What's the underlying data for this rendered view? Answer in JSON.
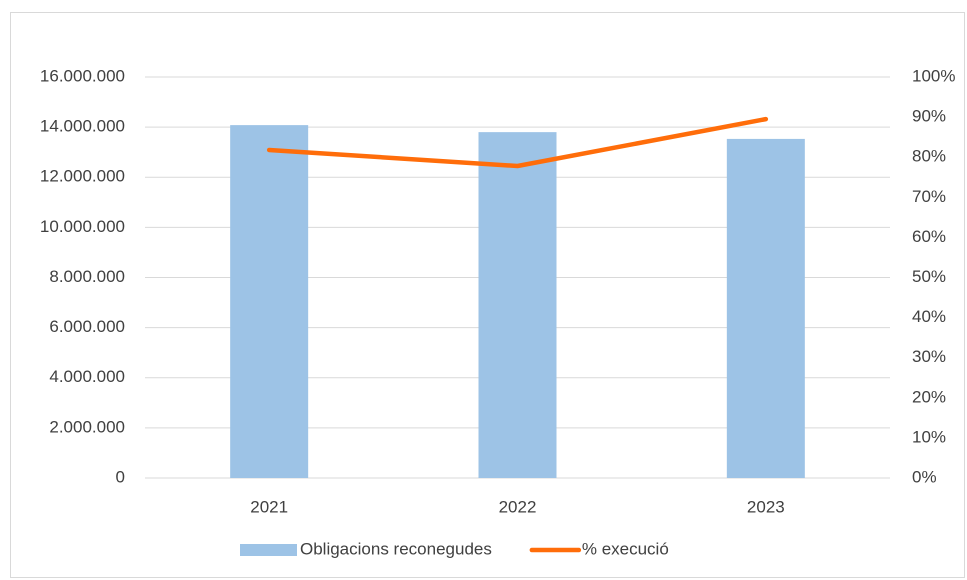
{
  "chart_data": {
    "type": "bar",
    "categories": [
      "2021",
      "2022",
      "2023"
    ],
    "series": [
      {
        "name": "Obligacions reconegudes",
        "type": "bar",
        "color": "#9dc3e6",
        "values": [
          14080000,
          13800000,
          13530000
        ]
      },
      {
        "name": "% execució",
        "type": "line",
        "axis": "y2",
        "color": "#ff6d0a",
        "values": [
          81.8,
          77.8,
          89.5
        ]
      }
    ],
    "ylim": [
      0,
      16000000
    ],
    "yticks": [
      0,
      {
        "value": 2000000,
        "label": "2.000.000"
      },
      {
        "value": 4000000,
        "label": "4.000.000"
      },
      {
        "value": 6000000,
        "label": "6.000.000"
      },
      {
        "value": 8000000,
        "label": "8.000.000"
      },
      {
        "value": 10000000,
        "label": "10.000.000"
      },
      {
        "value": 12000000,
        "label": "12.000.000"
      },
      {
        "value": 14000000,
        "label": "14.000.000"
      },
      {
        "value": 16000000,
        "label": "16.000.000"
      }
    ],
    "y2lim": [
      0,
      100
    ],
    "y2ticks": [
      {
        "value": 0,
        "label": "0%"
      },
      {
        "value": 10,
        "label": "10%"
      },
      {
        "value": 20,
        "label": "20%"
      },
      {
        "value": 30,
        "label": "30%"
      },
      {
        "value": 40,
        "label": "40%"
      },
      {
        "value": 50,
        "label": "50%"
      },
      {
        "value": 60,
        "label": "60%"
      },
      {
        "value": 70,
        "label": "70%"
      },
      {
        "value": 80,
        "label": "80%"
      },
      {
        "value": 90,
        "label": "90%"
      },
      {
        "value": 100,
        "label": "100%"
      }
    ],
    "grid": true,
    "legend": "bottom"
  }
}
